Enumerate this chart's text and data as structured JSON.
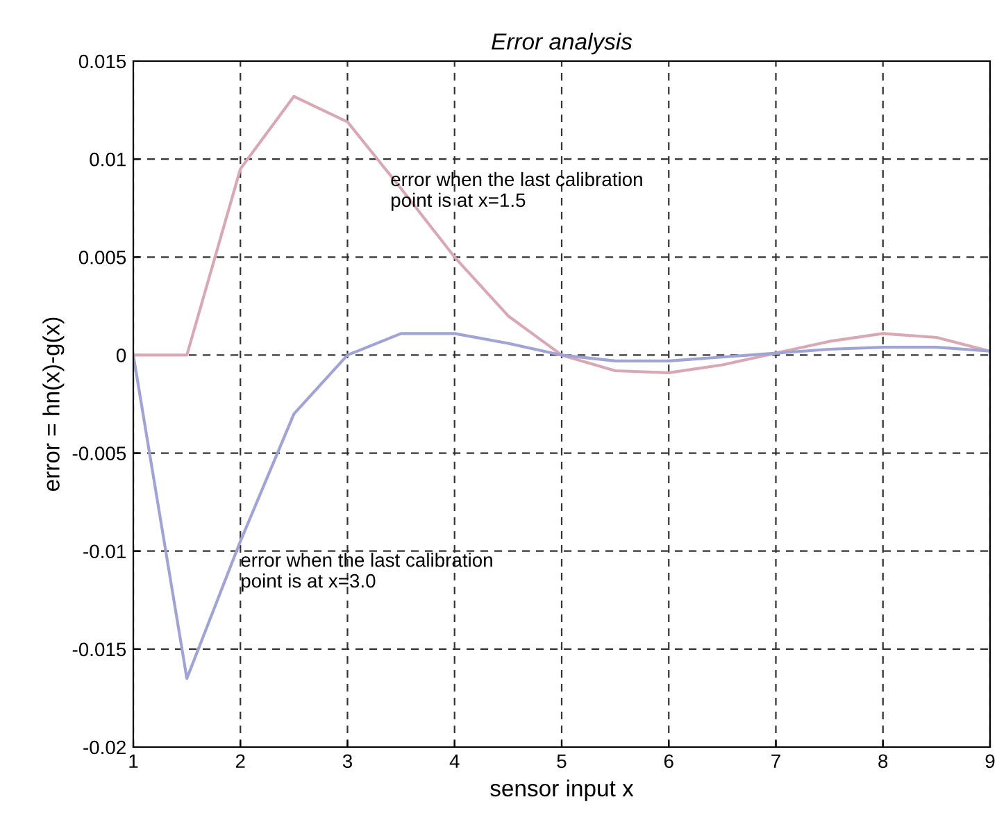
{
  "chart_data": {
    "type": "line",
    "title": "Error analysis",
    "xlabel": "sensor input x",
    "ylabel": "error = hn(x)-g(x)",
    "x": [
      1,
      1.5,
      2,
      2.5,
      3,
      3.5,
      4,
      4.5,
      5,
      5.5,
      6,
      6.5,
      7,
      7.5,
      8,
      8.5,
      9
    ],
    "series": [
      {
        "color": "#d8a8b4",
        "values": [
          0,
          0,
          0.0095,
          0.0132,
          0.0119,
          0.0085,
          0.005,
          0.002,
          0,
          -0.0008,
          -0.0009,
          -0.0005,
          0.0001,
          0.0007,
          0.0011,
          0.0009,
          0.0002
        ]
      },
      {
        "color": "#a0a4d4",
        "values": [
          0,
          -0.0165,
          -0.0095,
          -0.003,
          0,
          0.0011,
          0.0011,
          0.0006,
          0,
          -0.0003,
          -0.0003,
          -0.0001,
          0.0001,
          0.0003,
          0.0004,
          0.0004,
          0.0002
        ]
      }
    ],
    "annotations": [
      "error when the last calibration\npoint is at x=1.5",
      "error when the last calibration\npoint is at x=3.0"
    ],
    "xlim": [
      1,
      9
    ],
    "xticks": [
      1,
      2,
      3,
      4,
      5,
      6,
      7,
      8,
      9
    ],
    "ylim": [
      -0.02,
      0.015
    ],
    "yticks": [
      {
        "value": -0.02,
        "label": "-0.02"
      },
      {
        "value": -0.015,
        "label": "-0.015"
      },
      {
        "value": -0.01,
        "label": "-0.01"
      },
      {
        "value": -0.005,
        "label": "-0.005"
      },
      {
        "value": 0,
        "label": "0"
      },
      {
        "value": 0.005,
        "label": "0.005"
      },
      {
        "value": 0.01,
        "label": "0.01"
      },
      {
        "value": 0.015,
        "label": "0.015"
      }
    ],
    "grid": true,
    "legend": false,
    "marker": "none",
    "line_style": "solid"
  }
}
